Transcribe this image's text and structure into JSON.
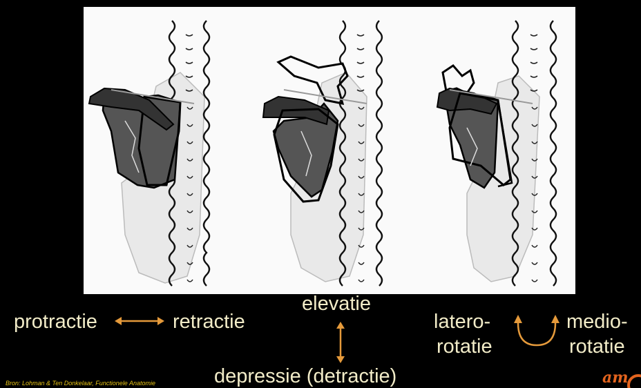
{
  "labels": {
    "protraction": "protractie",
    "retraction": "retractie",
    "elevation": "elevatie",
    "depression": "depressie (detractie)",
    "latero_line1": "latero-",
    "latero_line2": "rotatie",
    "medio_line1": "medio-",
    "medio_line2": "rotatie"
  },
  "source": "Bron: Lohman & Ten Donkelaar, Functionele Anatomie",
  "logo": "am",
  "colors": {
    "background": "#000000",
    "label": "#f2ecc8",
    "arrow": "#e59a3b",
    "source": "#e7c316",
    "logo": "#e4641e",
    "figure_bg": "#fafafa"
  }
}
